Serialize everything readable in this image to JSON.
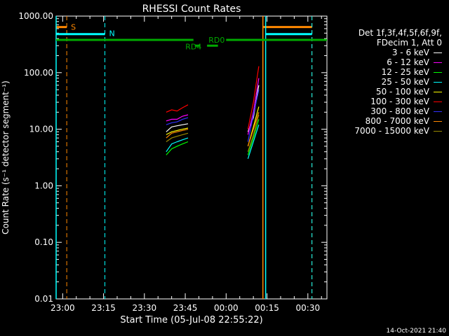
{
  "chart_data": {
    "type": "line",
    "title": "RHESSI Count Rates",
    "xlabel": "Start Time (05-Jul-08 22:55:22)",
    "ylabel": "Count Rate (s⁻¹ detector segment⁻¹)",
    "yscale": "log",
    "ylim": [
      0.01,
      1000
    ],
    "xlim_minutes": [
      -2.4,
      97
    ],
    "yticks": [
      "0.01",
      "0.10",
      "1.00",
      "10.00",
      "100.00",
      "1000.00"
    ],
    "ytick_values": [
      0.01,
      0.1,
      1,
      10,
      100,
      1000
    ],
    "xticks": [
      "23:00",
      "23:15",
      "23:30",
      "23:45",
      "00:00",
      "00:15",
      "00:30"
    ],
    "xtick_minutes": [
      0,
      15,
      30,
      45,
      60,
      75,
      90
    ],
    "grid": false,
    "legend": {
      "placement": "right",
      "header": [
        "Det 1f,3f,4f,5f,6f,9f,",
        "FDecim 1, Att 0"
      ]
    },
    "series": [
      {
        "name": "3 - 6 keV",
        "color": "#ffffff",
        "segments": [
          [
            [
              38,
              9
            ],
            [
              40,
              11
            ],
            [
              42,
              11.5
            ],
            [
              44,
              12
            ],
            [
              46,
              12.5
            ]
          ],
          [
            [
              68,
              9
            ],
            [
              70,
              16
            ],
            [
              72,
              60
            ]
          ]
        ]
      },
      {
        "name": "6 - 12 keV",
        "color": "#ff00ff",
        "segments": [
          [
            [
              38,
              14
            ],
            [
              40,
              15
            ],
            [
              42,
              15
            ],
            [
              44,
              17
            ],
            [
              46,
              18
            ]
          ],
          [
            [
              68,
              8
            ],
            [
              70,
              20
            ],
            [
              72,
              80
            ]
          ]
        ]
      },
      {
        "name": "12 - 25 keV",
        "color": "#00ff00",
        "segments": [
          [
            [
              38,
              3.5
            ],
            [
              40,
              4.5
            ],
            [
              42,
              5
            ],
            [
              44,
              5.5
            ],
            [
              46,
              6
            ]
          ],
          [
            [
              68,
              3.5
            ],
            [
              70,
              7
            ],
            [
              72,
              15
            ]
          ]
        ]
      },
      {
        "name": "25 - 50 keV",
        "color": "#00ffff",
        "segments": [
          [
            [
              38,
              4
            ],
            [
              40,
              5.5
            ],
            [
              42,
              6
            ],
            [
              44,
              6.5
            ],
            [
              46,
              7
            ]
          ],
          [
            [
              68,
              3
            ],
            [
              70,
              6
            ],
            [
              72,
              12
            ]
          ]
        ]
      },
      {
        "name": "50 - 100 keV",
        "color": "#ffff00",
        "segments": [
          [
            [
              38,
              8
            ],
            [
              40,
              9
            ],
            [
              42,
              9.5
            ],
            [
              44,
              10
            ],
            [
              46,
              10.5
            ]
          ],
          [
            [
              68,
              5
            ],
            [
              70,
              11
            ],
            [
              72,
              25
            ]
          ]
        ]
      },
      {
        "name": "100 - 300 keV",
        "color": "#ff0000",
        "segments": [
          [
            [
              38,
              20
            ],
            [
              40,
              22
            ],
            [
              42,
              21
            ],
            [
              44,
              24
            ],
            [
              46,
              27
            ]
          ],
          [
            [
              68,
              10
            ],
            [
              70,
              30
            ],
            [
              72,
              130
            ]
          ]
        ]
      },
      {
        "name": "300 - 800 keV",
        "color": "#3030ff",
        "segments": [
          [
            [
              38,
              12
            ],
            [
              40,
              13
            ],
            [
              42,
              13.5
            ],
            [
              44,
              15
            ],
            [
              46,
              16
            ]
          ],
          [
            [
              68,
              6
            ],
            [
              70,
              18
            ],
            [
              72,
              50
            ]
          ]
        ]
      },
      {
        "name": "800 - 7000 keV",
        "color": "#ff8800",
        "segments": [
          [
            [
              38,
              7
            ],
            [
              40,
              8.5
            ],
            [
              42,
              9
            ],
            [
              44,
              9.5
            ],
            [
              46,
              10
            ]
          ],
          [
            [
              68,
              5
            ],
            [
              70,
              10
            ],
            [
              72,
              20
            ]
          ]
        ]
      },
      {
        "name": "7000 - 15000 keV",
        "color": "#998800",
        "segments": [
          [
            [
              38,
              6
            ],
            [
              40,
              7
            ],
            [
              42,
              7.5
            ],
            [
              44,
              8
            ],
            [
              46,
              8.5
            ]
          ],
          [
            [
              68,
              4
            ],
            [
              70,
              8
            ],
            [
              72,
              18
            ]
          ]
        ]
      }
    ],
    "annotations": [
      {
        "text": "S",
        "color": "#ff8800",
        "x": 1.5,
        "y": 640
      },
      {
        "text": "N",
        "color": "#00ffff",
        "x": 15.5,
        "y": 500
      },
      {
        "text": "RD0",
        "color": "#00aa00",
        "x": 52,
        "y": 380
      },
      {
        "text": "RD4",
        "color": "#00aa00",
        "x": 43.5,
        "y": 290
      }
    ],
    "states": [
      {
        "color": "#ff8800",
        "dashed_verticals": [
          1.5,
          91.5
        ],
        "solid_verticals": [
          73.5
        ],
        "level": 640,
        "spans": [
          [
            -2.4,
            1.5
          ],
          [
            73.5,
            91.5
          ]
        ]
      },
      {
        "color": "#00ffff",
        "dashed_verticals": [
          15.5,
          91.5
        ],
        "solid_verticals": [
          -2.4,
          74.5
        ],
        "level": 480,
        "spans": [
          [
            -2.4,
            15.5
          ],
          [
            74.5,
            91.5
          ]
        ]
      },
      {
        "color": "#00aa00",
        "level": 380,
        "spans": [
          [
            -2.4,
            48
          ],
          [
            60,
            97
          ]
        ],
        "extra": [
          {
            "level": 300,
            "span": [
              48.5,
              50.5
            ]
          },
          {
            "level": 300,
            "span": [
              53,
              57
            ]
          }
        ]
      }
    ]
  },
  "footer": {
    "timestamp": "14-Oct-2021 21:40"
  }
}
